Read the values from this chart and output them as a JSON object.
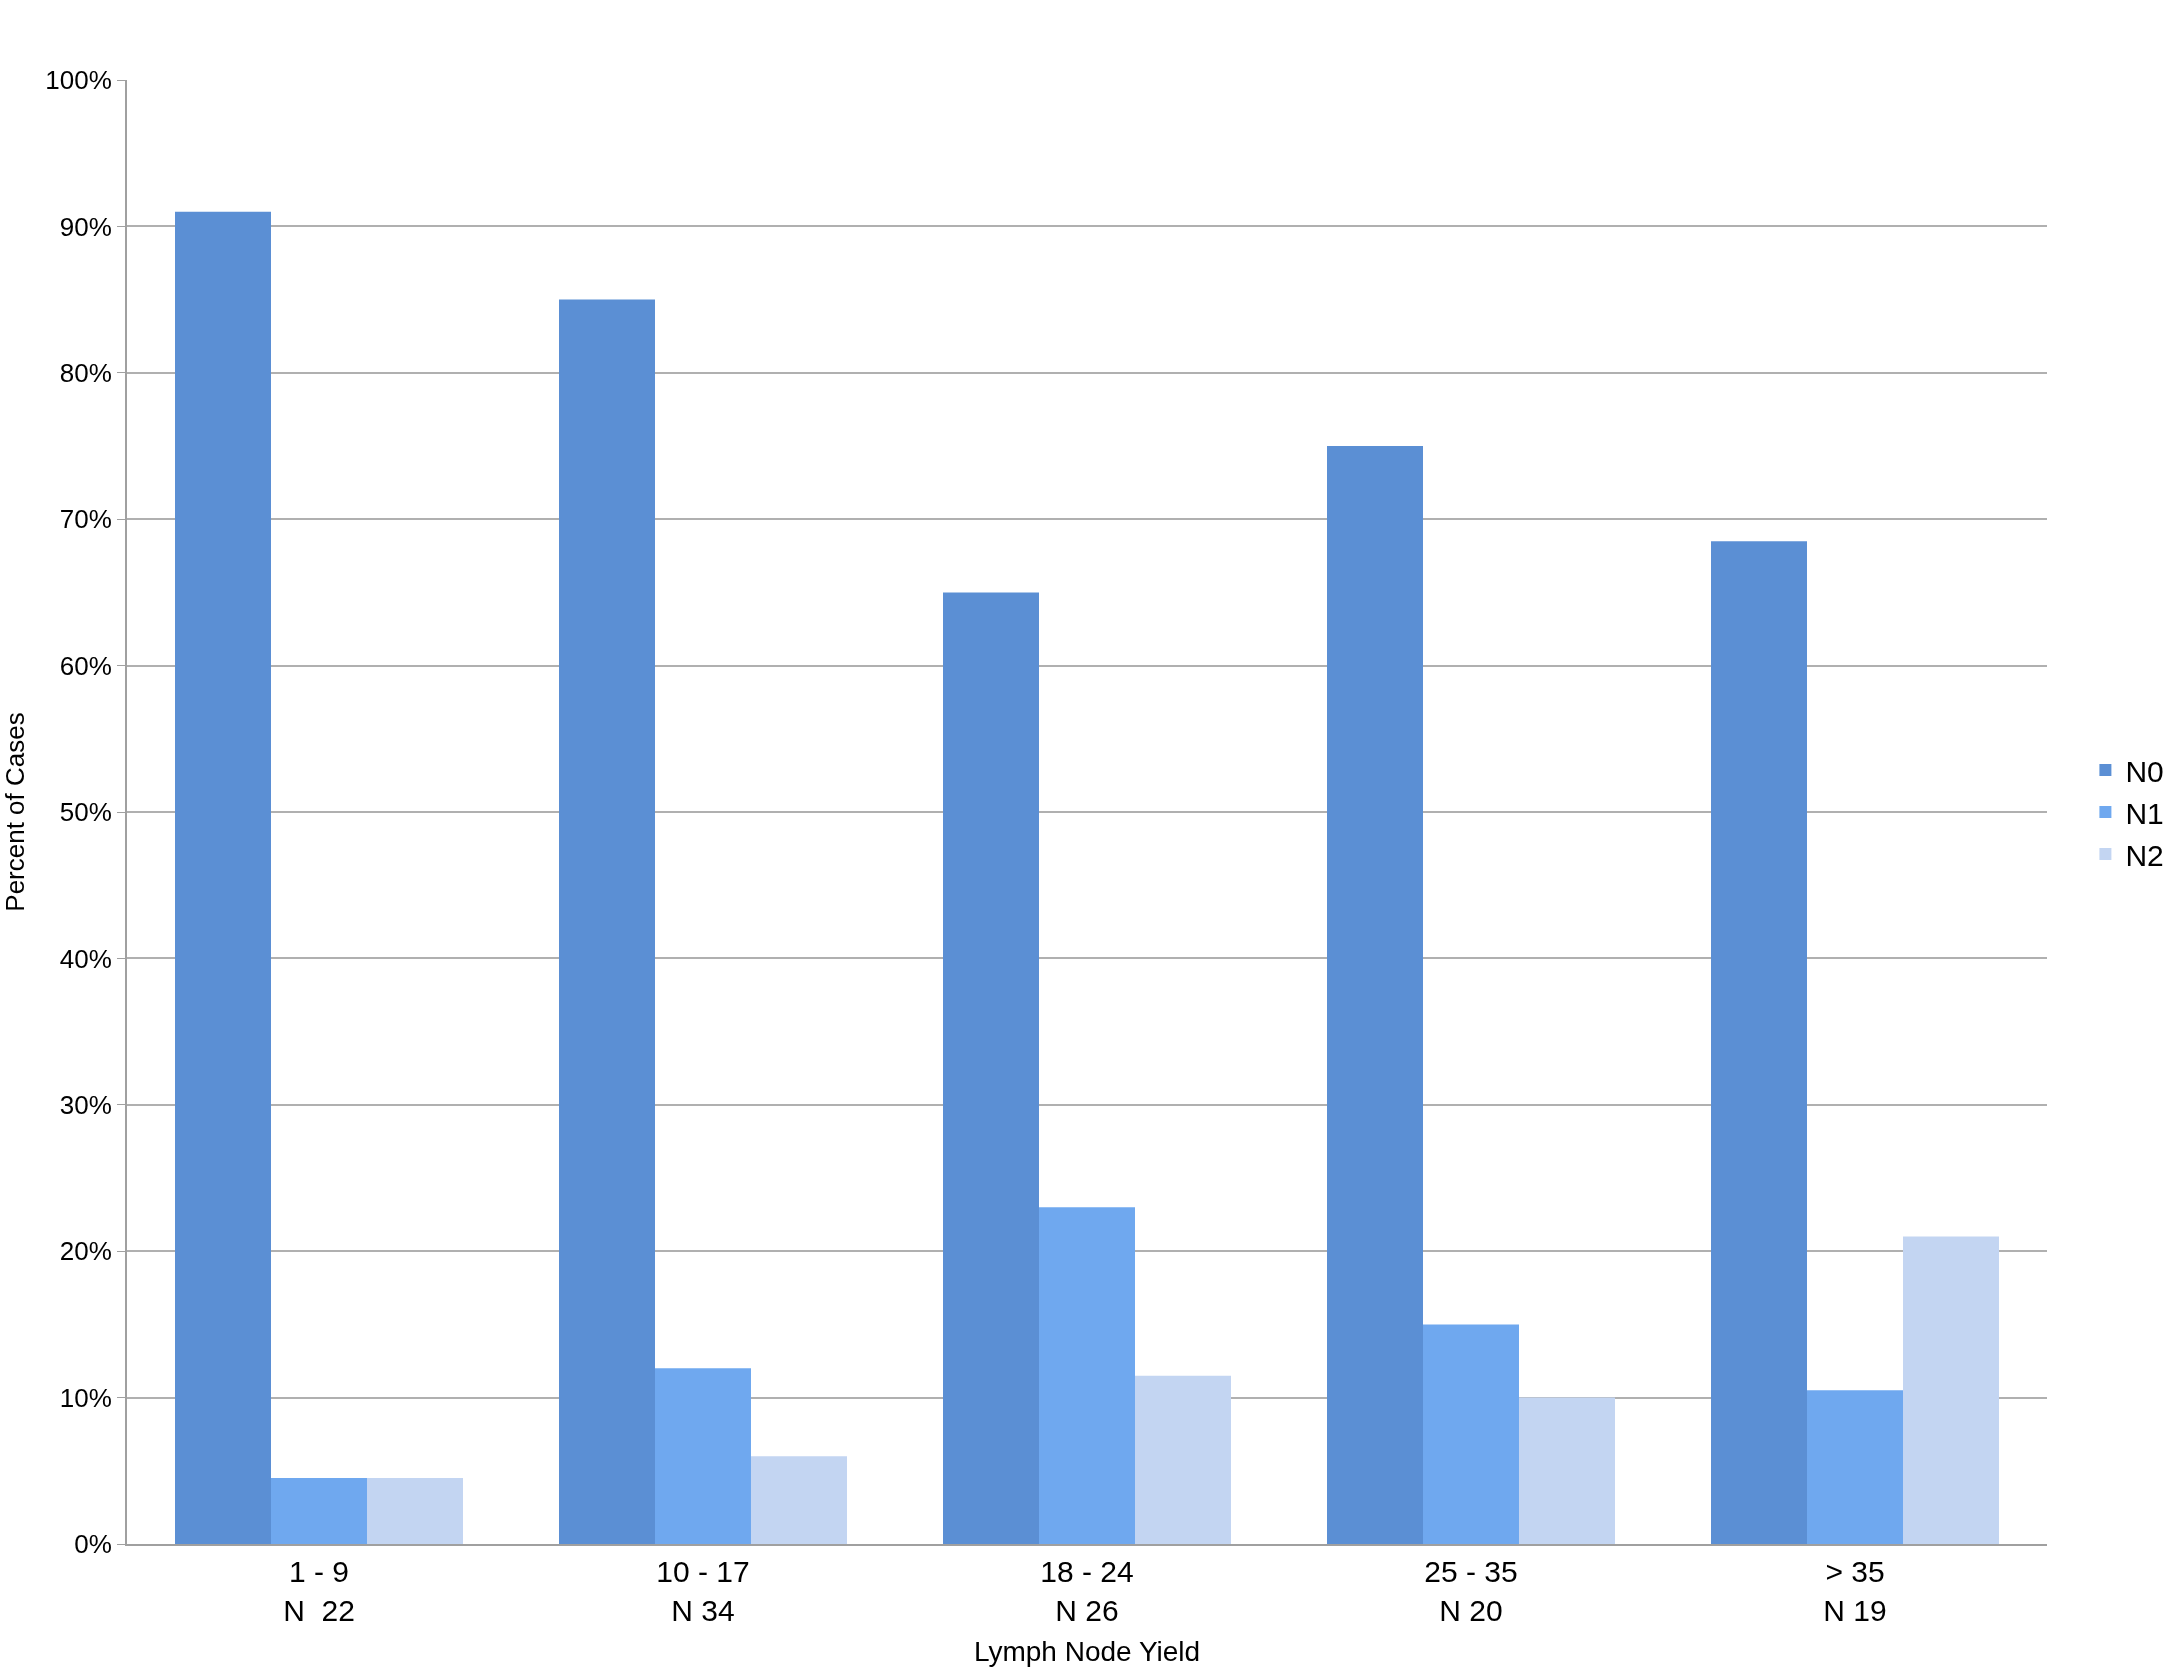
{
  "chart_data": {
    "type": "bar",
    "xlabel": "Lymph Node Yield",
    "ylabel": "Percent of Cases",
    "categories": [
      "1 - 9\nN  22",
      "10 - 17\nN 34",
      "18 - 24\nN 26",
      "25 - 35\nN 20",
      "> 35\nN 19"
    ],
    "series": [
      {
        "name": "N0",
        "color": "#5b8fd4",
        "values": [
          91,
          85,
          65,
          75,
          68.5
        ]
      },
      {
        "name": "N1",
        "color": "#6fa8ef",
        "values": [
          4.5,
          12,
          23,
          15,
          10.5
        ]
      },
      {
        "name": "N2",
        "color": "#c3d5f2",
        "values": [
          4.5,
          6,
          11.5,
          10,
          21
        ]
      }
    ],
    "ylim": [
      0,
      100
    ],
    "yticks": [
      {
        "value": 0,
        "label": "0%"
      },
      {
        "value": 10,
        "label": "10%"
      },
      {
        "value": 20,
        "label": "20%"
      },
      {
        "value": 30,
        "label": "30%"
      },
      {
        "value": 40,
        "label": "40%"
      },
      {
        "value": 50,
        "label": "50%"
      },
      {
        "value": 60,
        "label": "60%"
      },
      {
        "value": 70,
        "label": "70%"
      },
      {
        "value": 80,
        "label": "80%"
      },
      {
        "value": 90,
        "label": "90%"
      },
      {
        "value": 100,
        "label": "100%"
      }
    ],
    "grid": "y",
    "legend": "right"
  }
}
